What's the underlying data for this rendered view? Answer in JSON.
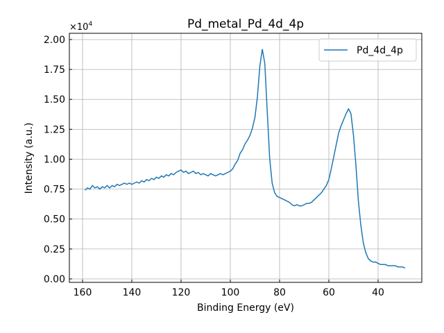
{
  "chart_data": {
    "type": "line",
    "title": "Pd_metal_Pd_4d_4p",
    "xlabel": "Binding Energy (eV)",
    "ylabel": "Intensity (a.u.)",
    "y_scale_label": "×10",
    "y_scale_exp": "4",
    "xlim": [
      165.35,
      22.25
    ],
    "ylim": [
      -290,
      20520
    ],
    "grid": true,
    "legend_placement": "top-right",
    "x_ticks": [
      160,
      140,
      120,
      100,
      80,
      60,
      40
    ],
    "x_tick_labels": [
      "160",
      "140",
      "120",
      "100",
      "80",
      "60",
      "40"
    ],
    "y_ticks": [
      0,
      2500,
      5000,
      7500,
      10000,
      12500,
      15000,
      17500,
      20000
    ],
    "y_tick_labels": [
      "0.00",
      "0.25",
      "0.50",
      "0.75",
      "1.00",
      "1.25",
      "1.50",
      "1.75",
      "2.00"
    ],
    "series": [
      {
        "name": "Pd_4d_4p",
        "color": "#1f77b4",
        "x": [
          159,
          158,
          157,
          156,
          155,
          154,
          153,
          152,
          151,
          150,
          149,
          148,
          147,
          146,
          145,
          144,
          143,
          142,
          141,
          140,
          139,
          138,
          137,
          136,
          135,
          134,
          133,
          132,
          131,
          130,
          129,
          128,
          127,
          126,
          125,
          124,
          123,
          122,
          121,
          120,
          119,
          118,
          117,
          116,
          115,
          114,
          113,
          112,
          111,
          110,
          109,
          108,
          107,
          106,
          105,
          104,
          103,
          102,
          101,
          100,
          99,
          98,
          97,
          96,
          95,
          94,
          93,
          92,
          91,
          90,
          89,
          88,
          87,
          86,
          85,
          84,
          83,
          82,
          81,
          80,
          79,
          78,
          77,
          76,
          75,
          74,
          73,
          72,
          71,
          70,
          69,
          68,
          67,
          66,
          65,
          64,
          63,
          62,
          61,
          60,
          59,
          58,
          57,
          56,
          55,
          54,
          53,
          52,
          51,
          50,
          49,
          48,
          47,
          46,
          45,
          44,
          43,
          42,
          41,
          40,
          39,
          38,
          37,
          36,
          35,
          34,
          33,
          32,
          31,
          30,
          29
        ],
        "y": [
          7400,
          7600,
          7500,
          7800,
          7600,
          7700,
          7500,
          7700,
          7600,
          7800,
          7600,
          7800,
          7700,
          7900,
          7800,
          7900,
          8000,
          7900,
          8000,
          7900,
          8000,
          8100,
          8000,
          8200,
          8100,
          8300,
          8200,
          8400,
          8300,
          8500,
          8400,
          8600,
          8500,
          8700,
          8600,
          8800,
          8700,
          8900,
          9000,
          9100,
          8900,
          9000,
          8800,
          8900,
          9000,
          8800,
          8900,
          8700,
          8800,
          8700,
          8600,
          8800,
          8700,
          8600,
          8700,
          8800,
          8700,
          8800,
          8900,
          9000,
          9200,
          9600,
          9900,
          10500,
          10800,
          11300,
          11600,
          12000,
          12600,
          13500,
          15200,
          17800,
          19200,
          18000,
          14000,
          10000,
          8000,
          7200,
          6900,
          6800,
          6700,
          6600,
          6500,
          6400,
          6200,
          6100,
          6200,
          6100,
          6100,
          6200,
          6300,
          6300,
          6400,
          6600,
          6800,
          7000,
          7200,
          7500,
          7800,
          8300,
          9200,
          10200,
          11200,
          12200,
          12800,
          13300,
          13800,
          14200,
          13800,
          12000,
          9500,
          6500,
          4500,
          3000,
          2200,
          1700,
          1500,
          1400,
          1400,
          1300,
          1200,
          1200,
          1200,
          1100,
          1100,
          1100,
          1100,
          1000,
          1000,
          1000,
          900
        ]
      }
    ]
  }
}
